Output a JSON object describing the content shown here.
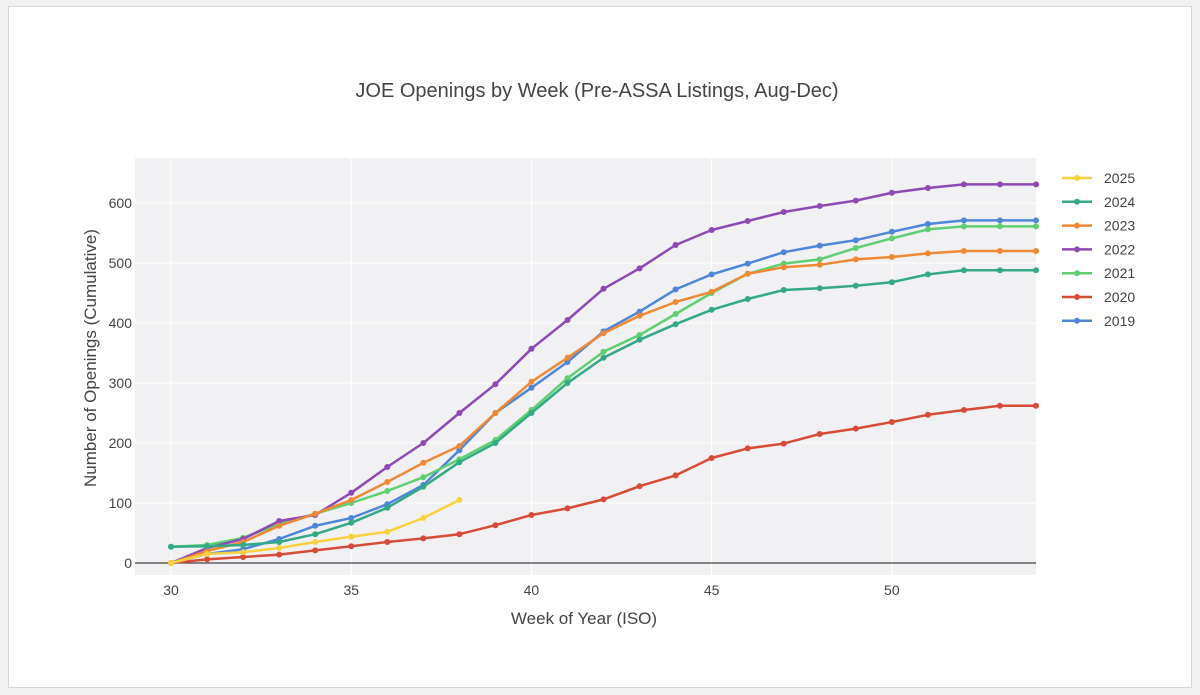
{
  "chart_data": {
    "type": "line",
    "title": "JOE Openings by Week (Pre-ASSA Listings, Aug-Dec)",
    "xlabel": "Week of Year (ISO)",
    "ylabel": "Number of Openings (Cumulative)",
    "xlim": [
      29,
      54
    ],
    "ylim": [
      -20,
      675
    ],
    "xticks": [
      30,
      35,
      40,
      45,
      50
    ],
    "yticks": [
      0,
      100,
      200,
      300,
      400,
      500,
      600
    ],
    "grid": true,
    "legend_position": "top-right",
    "series": [
      {
        "name": "2025",
        "color": "#f7d23e",
        "x": [
          30,
          31,
          32,
          33,
          34,
          35,
          36,
          37,
          38
        ],
        "y": [
          0,
          15,
          18,
          25,
          35,
          44,
          52,
          75,
          105
        ]
      },
      {
        "name": "2024",
        "color": "#35a987",
        "x": [
          30,
          31,
          32,
          33,
          34,
          35,
          36,
          37,
          38,
          39,
          40,
          41,
          42,
          43,
          44,
          45,
          46,
          47,
          48,
          49,
          50,
          51,
          52,
          53,
          54
        ],
        "y": [
          27,
          28,
          30,
          35,
          48,
          67,
          92,
          127,
          168,
          200,
          250,
          300,
          342,
          372,
          398,
          422,
          440,
          455,
          458,
          462,
          468,
          481,
          488,
          488,
          488
        ]
      },
      {
        "name": "2023",
        "color": "#ee8a35",
        "x": [
          30,
          31,
          32,
          33,
          34,
          35,
          36,
          37,
          38,
          39,
          40,
          41,
          42,
          43,
          44,
          45,
          46,
          47,
          48,
          49,
          50,
          51,
          52,
          53,
          54
        ],
        "y": [
          0,
          20,
          35,
          62,
          82,
          105,
          135,
          167,
          195,
          250,
          302,
          342,
          383,
          412,
          435,
          452,
          482,
          493,
          497,
          506,
          510,
          516,
          520,
          520,
          520
        ]
      },
      {
        "name": "2022",
        "color": "#8e4ab4",
        "x": [
          30,
          31,
          32,
          33,
          34,
          35,
          36,
          37,
          38,
          39,
          40,
          41,
          42,
          43,
          44,
          45,
          46,
          47,
          48,
          49,
          50,
          51,
          52,
          53,
          54
        ],
        "y": [
          0,
          25,
          40,
          70,
          80,
          117,
          160,
          200,
          250,
          298,
          357,
          405,
          457,
          491,
          530,
          555,
          570,
          585,
          595,
          604,
          617,
          625,
          631,
          631,
          631
        ]
      },
      {
        "name": "2021",
        "color": "#5fcf72",
        "x": [
          30,
          31,
          32,
          33,
          34,
          35,
          36,
          37,
          38,
          39,
          40,
          41,
          42,
          43,
          44,
          45,
          46,
          47,
          48,
          49,
          50,
          51,
          52,
          53,
          54
        ],
        "y": [
          27,
          30,
          42,
          65,
          82,
          100,
          120,
          143,
          173,
          205,
          255,
          308,
          352,
          380,
          415,
          450,
          482,
          499,
          506,
          525,
          541,
          556,
          561,
          561,
          561
        ]
      },
      {
        "name": "2020",
        "color": "#d84b38",
        "x": [
          30,
          31,
          32,
          33,
          34,
          35,
          36,
          37,
          38,
          39,
          40,
          41,
          42,
          43,
          44,
          45,
          46,
          47,
          48,
          49,
          50,
          51,
          52,
          53,
          54
        ],
        "y": [
          0,
          6,
          10,
          14,
          21,
          28,
          35,
          41,
          48,
          63,
          80,
          91,
          106,
          128,
          146,
          175,
          191,
          199,
          215,
          224,
          235,
          247,
          255,
          262,
          262
        ]
      },
      {
        "name": "2019",
        "color": "#4f86d9",
        "x": [
          30,
          31,
          32,
          33,
          34,
          35,
          36,
          37,
          38,
          39,
          40,
          41,
          42,
          43,
          44,
          45,
          46,
          47,
          48,
          49,
          50,
          51,
          52,
          53,
          54
        ],
        "y": [
          0,
          15,
          23,
          40,
          62,
          75,
          98,
          130,
          188,
          250,
          292,
          335,
          386,
          419,
          456,
          481,
          499,
          518,
          529,
          538,
          552,
          565,
          571,
          571,
          571
        ]
      }
    ]
  }
}
